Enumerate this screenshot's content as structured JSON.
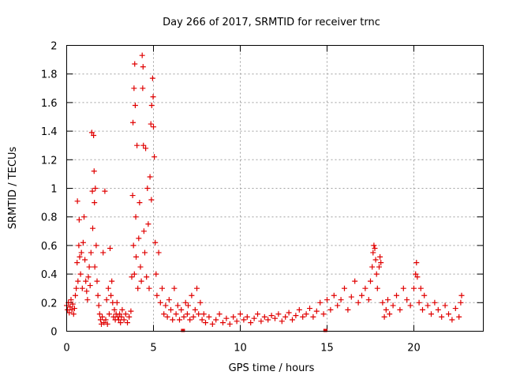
{
  "chart_data": {
    "type": "scatter",
    "title": "Day 266 of 2017, SRMTID for receiver trnc",
    "xlabel": "GPS time / hours",
    "ylabel": "SRMTID / TECUs",
    "xlim": [
      0,
      24
    ],
    "ylim": [
      0,
      2
    ],
    "xticks": [
      0,
      5,
      10,
      15,
      20
    ],
    "yticks": [
      0,
      0.2,
      0.4,
      0.6,
      0.8,
      1,
      1.2,
      1.4,
      1.6,
      1.8,
      2
    ],
    "xtick_labels": [
      "0",
      "5",
      "10",
      "15",
      "20"
    ],
    "ytick_labels": [
      "0",
      "0.2",
      "0.4",
      "0.6",
      "0.8",
      "1",
      "1.2",
      "1.4",
      "1.6",
      "1.8",
      "2"
    ],
    "grid": true,
    "marker": "+",
    "color": "#e00000",
    "gap_markers_x": [
      6.7,
      14.9
    ],
    "series": [
      {
        "name": "SRMTID",
        "points": [
          [
            0.0,
            0.18
          ],
          [
            0.05,
            0.15
          ],
          [
            0.1,
            0.2
          ],
          [
            0.15,
            0.13
          ],
          [
            0.2,
            0.17
          ],
          [
            0.25,
            0.22
          ],
          [
            0.3,
            0.15
          ],
          [
            0.35,
            0.19
          ],
          [
            0.4,
            0.12
          ],
          [
            0.45,
            0.16
          ],
          [
            0.5,
            0.25
          ],
          [
            0.55,
            0.3
          ],
          [
            0.6,
            0.48
          ],
          [
            0.62,
            0.91
          ],
          [
            0.65,
            0.35
          ],
          [
            0.7,
            0.6
          ],
          [
            0.72,
            0.78
          ],
          [
            0.75,
            0.52
          ],
          [
            0.8,
            0.4
          ],
          [
            0.85,
            0.55
          ],
          [
            0.9,
            0.3
          ],
          [
            0.95,
            0.62
          ],
          [
            1.0,
            0.8
          ],
          [
            1.05,
            0.5
          ],
          [
            1.1,
            0.35
          ],
          [
            1.15,
            0.28
          ],
          [
            1.2,
            0.22
          ],
          [
            1.25,
            0.38
          ],
          [
            1.3,
            0.45
          ],
          [
            1.35,
            0.32
          ],
          [
            1.4,
            0.55
          ],
          [
            1.45,
            1.39
          ],
          [
            1.48,
            0.98
          ],
          [
            1.5,
            0.72
          ],
          [
            1.55,
            1.37
          ],
          [
            1.58,
            1.12
          ],
          [
            1.6,
            0.9
          ],
          [
            1.62,
            0.45
          ],
          [
            1.65,
            1.0
          ],
          [
            1.7,
            0.6
          ],
          [
            1.75,
            0.35
          ],
          [
            1.8,
            0.25
          ],
          [
            1.85,
            0.18
          ],
          [
            1.9,
            0.12
          ],
          [
            1.95,
            0.08
          ],
          [
            2.0,
            0.05
          ],
          [
            2.05,
            0.1
          ],
          [
            2.1,
            0.55
          ],
          [
            2.15,
            0.06
          ],
          [
            2.2,
            0.98
          ],
          [
            2.25,
            0.08
          ],
          [
            2.3,
            0.22
          ],
          [
            2.35,
            0.05
          ],
          [
            2.4,
            0.3
          ],
          [
            2.45,
            0.12
          ],
          [
            2.5,
            0.58
          ],
          [
            2.55,
            0.25
          ],
          [
            2.6,
            0.35
          ],
          [
            2.65,
            0.2
          ],
          [
            2.7,
            0.1
          ],
          [
            2.75,
            0.15
          ],
          [
            2.8,
            0.08
          ],
          [
            2.85,
            0.12
          ],
          [
            2.9,
            0.2
          ],
          [
            2.95,
            0.1
          ],
          [
            3.0,
            0.08
          ],
          [
            3.05,
            0.12
          ],
          [
            3.1,
            0.06
          ],
          [
            3.15,
            0.1
          ],
          [
            3.2,
            0.15
          ],
          [
            3.3,
            0.08
          ],
          [
            3.4,
            0.12
          ],
          [
            3.5,
            0.06
          ],
          [
            3.6,
            0.1
          ],
          [
            3.7,
            0.14
          ],
          [
            3.75,
            0.38
          ],
          [
            3.8,
            0.95
          ],
          [
            3.82,
            1.46
          ],
          [
            3.85,
            0.6
          ],
          [
            3.88,
            1.7
          ],
          [
            3.9,
            0.4
          ],
          [
            3.92,
            1.87
          ],
          [
            3.95,
            1.58
          ],
          [
            3.98,
            0.8
          ],
          [
            4.0,
            0.52
          ],
          [
            4.05,
            1.3
          ],
          [
            4.1,
            0.3
          ],
          [
            4.15,
            0.65
          ],
          [
            4.2,
            0.9
          ],
          [
            4.25,
            0.45
          ],
          [
            4.3,
            0.35
          ],
          [
            4.35,
            1.93
          ],
          [
            4.38,
            1.7
          ],
          [
            4.4,
            1.85
          ],
          [
            4.42,
            1.3
          ],
          [
            4.45,
            0.7
          ],
          [
            4.5,
            0.55
          ],
          [
            4.55,
            1.28
          ],
          [
            4.6,
            0.38
          ],
          [
            4.65,
            1.0
          ],
          [
            4.7,
            0.75
          ],
          [
            4.75,
            0.3
          ],
          [
            4.8,
            1.08
          ],
          [
            4.85,
            1.45
          ],
          [
            4.88,
            0.92
          ],
          [
            4.9,
            1.58
          ],
          [
            4.95,
            1.77
          ],
          [
            4.98,
            1.64
          ],
          [
            5.0,
            1.43
          ],
          [
            5.05,
            1.22
          ],
          [
            5.1,
            0.62
          ],
          [
            5.15,
            0.4
          ],
          [
            5.2,
            0.25
          ],
          [
            5.3,
            0.55
          ],
          [
            5.4,
            0.2
          ],
          [
            5.5,
            0.3
          ],
          [
            5.6,
            0.12
          ],
          [
            5.7,
            0.18
          ],
          [
            5.8,
            0.1
          ],
          [
            5.9,
            0.22
          ],
          [
            6.0,
            0.15
          ],
          [
            6.1,
            0.08
          ],
          [
            6.2,
            0.3
          ],
          [
            6.3,
            0.12
          ],
          [
            6.4,
            0.18
          ],
          [
            6.5,
            0.08
          ],
          [
            6.6,
            0.15
          ],
          [
            6.75,
            0.1
          ],
          [
            6.85,
            0.2
          ],
          [
            6.95,
            0.12
          ],
          [
            7.0,
            0.18
          ],
          [
            7.1,
            0.08
          ],
          [
            7.2,
            0.25
          ],
          [
            7.3,
            0.1
          ],
          [
            7.4,
            0.15
          ],
          [
            7.5,
            0.3
          ],
          [
            7.6,
            0.12
          ],
          [
            7.7,
            0.2
          ],
          [
            7.8,
            0.08
          ],
          [
            7.9,
            0.12
          ],
          [
            8.0,
            0.06
          ],
          [
            8.2,
            0.1
          ],
          [
            8.4,
            0.05
          ],
          [
            8.6,
            0.08
          ],
          [
            8.8,
            0.12
          ],
          [
            9.0,
            0.06
          ],
          [
            9.2,
            0.09
          ],
          [
            9.4,
            0.05
          ],
          [
            9.6,
            0.1
          ],
          [
            9.8,
            0.07
          ],
          [
            10.0,
            0.12
          ],
          [
            10.2,
            0.08
          ],
          [
            10.4,
            0.1
          ],
          [
            10.6,
            0.06
          ],
          [
            10.8,
            0.09
          ],
          [
            11.0,
            0.12
          ],
          [
            11.2,
            0.07
          ],
          [
            11.4,
            0.1
          ],
          [
            11.6,
            0.08
          ],
          [
            11.8,
            0.11
          ],
          [
            12.0,
            0.09
          ],
          [
            12.2,
            0.12
          ],
          [
            12.4,
            0.07
          ],
          [
            12.6,
            0.1
          ],
          [
            12.8,
            0.13
          ],
          [
            13.0,
            0.08
          ],
          [
            13.2,
            0.11
          ],
          [
            13.4,
            0.15
          ],
          [
            13.6,
            0.1
          ],
          [
            13.8,
            0.12
          ],
          [
            14.0,
            0.16
          ],
          [
            14.2,
            0.1
          ],
          [
            14.4,
            0.14
          ],
          [
            14.6,
            0.2
          ],
          [
            14.8,
            0.12
          ],
          [
            15.0,
            0.22
          ],
          [
            15.2,
            0.15
          ],
          [
            15.4,
            0.25
          ],
          [
            15.6,
            0.18
          ],
          [
            15.8,
            0.22
          ],
          [
            16.0,
            0.3
          ],
          [
            16.2,
            0.15
          ],
          [
            16.4,
            0.24
          ],
          [
            16.6,
            0.35
          ],
          [
            16.8,
            0.2
          ],
          [
            17.0,
            0.25
          ],
          [
            17.2,
            0.3
          ],
          [
            17.4,
            0.22
          ],
          [
            17.5,
            0.35
          ],
          [
            17.6,
            0.45
          ],
          [
            17.65,
            0.55
          ],
          [
            17.7,
            0.6
          ],
          [
            17.75,
            0.58
          ],
          [
            17.8,
            0.5
          ],
          [
            17.85,
            0.4
          ],
          [
            17.9,
            0.3
          ],
          [
            18.0,
            0.45
          ],
          [
            18.05,
            0.52
          ],
          [
            18.1,
            0.48
          ],
          [
            18.2,
            0.2
          ],
          [
            18.3,
            0.1
          ],
          [
            18.4,
            0.15
          ],
          [
            18.5,
            0.22
          ],
          [
            18.6,
            0.12
          ],
          [
            18.8,
            0.18
          ],
          [
            19.0,
            0.25
          ],
          [
            19.2,
            0.15
          ],
          [
            19.4,
            0.3
          ],
          [
            19.6,
            0.22
          ],
          [
            19.8,
            0.18
          ],
          [
            20.0,
            0.3
          ],
          [
            20.1,
            0.4
          ],
          [
            20.15,
            0.48
          ],
          [
            20.2,
            0.38
          ],
          [
            20.3,
            0.2
          ],
          [
            20.4,
            0.3
          ],
          [
            20.5,
            0.15
          ],
          [
            20.6,
            0.25
          ],
          [
            20.8,
            0.18
          ],
          [
            21.0,
            0.12
          ],
          [
            21.2,
            0.2
          ],
          [
            21.4,
            0.15
          ],
          [
            21.6,
            0.1
          ],
          [
            21.8,
            0.18
          ],
          [
            22.0,
            0.12
          ],
          [
            22.2,
            0.08
          ],
          [
            22.4,
            0.16
          ],
          [
            22.6,
            0.1
          ],
          [
            22.7,
            0.2
          ],
          [
            22.75,
            0.25
          ]
        ]
      }
    ]
  }
}
